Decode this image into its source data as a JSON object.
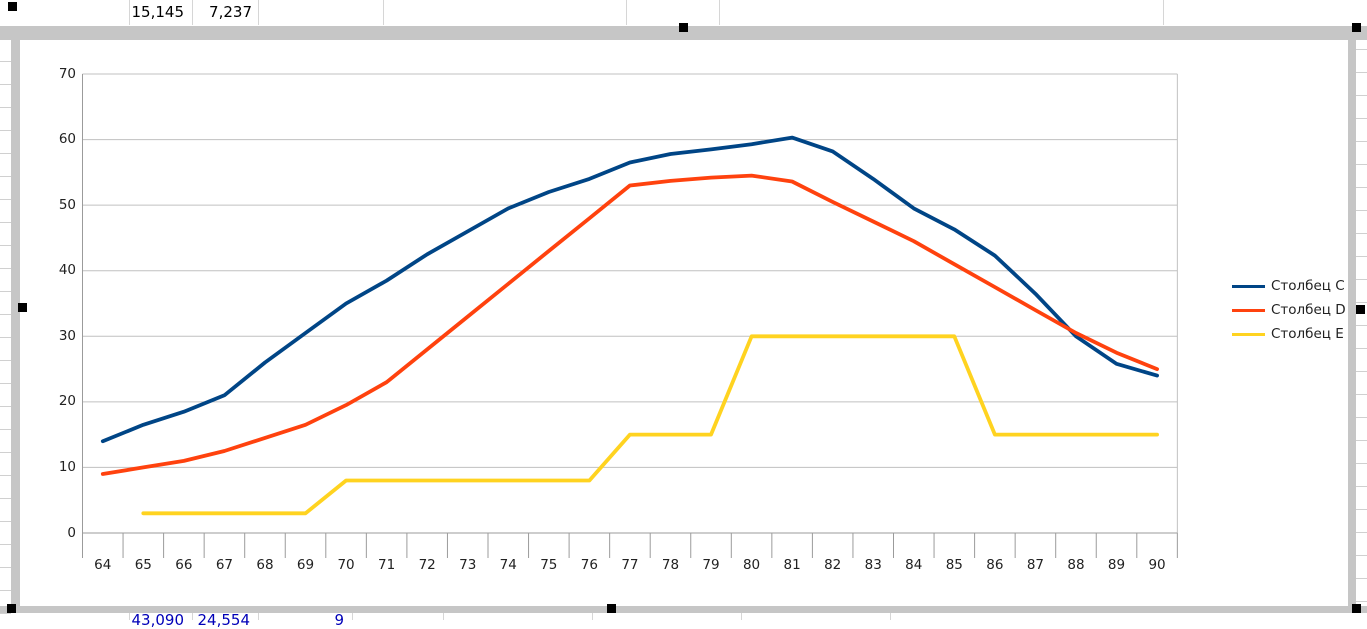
{
  "spreadsheet": {
    "top_row_cells": [
      "15,145",
      "7,237"
    ],
    "bottom_row_cells": [
      "43,090",
      "24,554",
      "9"
    ]
  },
  "chart_data": {
    "type": "line",
    "title": "",
    "xlabel": "",
    "ylabel": "",
    "categories": [
      64,
      65,
      66,
      67,
      68,
      69,
      70,
      71,
      72,
      73,
      74,
      75,
      76,
      77,
      78,
      79,
      80,
      81,
      82,
      83,
      84,
      85,
      86,
      87,
      88,
      89,
      90
    ],
    "y_ticks": [
      0,
      10,
      20,
      30,
      40,
      50,
      60,
      70
    ],
    "ylim": [
      0,
      70
    ],
    "grid": true,
    "legend_position": "right",
    "series": [
      {
        "name": "Столбец C",
        "color": "#004586",
        "values": [
          14,
          16.5,
          18.5,
          21,
          26,
          30.5,
          35,
          38.5,
          42.5,
          46,
          49.5,
          52,
          54,
          56.5,
          57.8,
          58.5,
          59.3,
          60.3,
          58.2,
          54,
          49.5,
          46.3,
          42.3,
          36.5,
          30,
          25.8,
          24
        ]
      },
      {
        "name": "Столбец D",
        "color": "#FF420E",
        "values": [
          9,
          10,
          11,
          12.5,
          14.5,
          16.5,
          19.5,
          23,
          28,
          33,
          38,
          43,
          48,
          53,
          53.7,
          54.2,
          54.5,
          53.6,
          50.5,
          47.5,
          44.5,
          41,
          37.5,
          34,
          30.5,
          27.5,
          25
        ]
      },
      {
        "name": "Столбец E",
        "color": "#FFD320",
        "values": [
          null,
          3,
          3,
          3,
          3,
          3,
          8,
          8,
          8,
          8,
          8,
          8,
          8,
          15,
          15,
          15,
          30,
          30,
          30,
          30,
          30,
          30,
          15,
          15,
          15,
          15,
          15
        ]
      }
    ]
  },
  "colors": {
    "gridline": "#c0c0c0",
    "axis": "#9b9b9b",
    "selection_frame": "#c6c6c6",
    "handle": "#000000"
  }
}
